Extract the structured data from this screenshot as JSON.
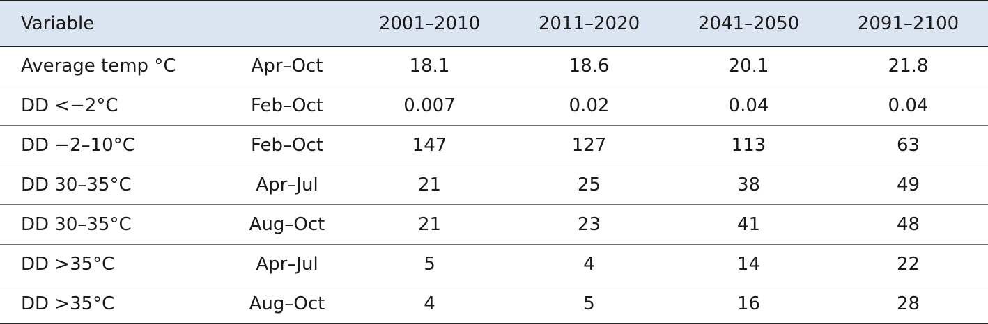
{
  "table": {
    "headers": [
      "Variable",
      "",
      "2001–2010",
      "2011–2020",
      "2041–2050",
      "2091–2100"
    ],
    "rows": [
      {
        "variable": "Average temp °C",
        "period": "Apr–Oct",
        "values": [
          "18.1",
          "18.6",
          "20.1",
          "21.8"
        ]
      },
      {
        "variable": "DD <−2°C",
        "period": "Feb–Oct",
        "values": [
          "0.007",
          "0.02",
          "0.04",
          "0.04"
        ]
      },
      {
        "variable": "DD −2–10°C",
        "period": "Feb–Oct",
        "values": [
          "147",
          "127",
          "113",
          "63"
        ]
      },
      {
        "variable": "DD 30–35°C",
        "period": "Apr–Jul",
        "values": [
          "21",
          "25",
          "38",
          "49"
        ]
      },
      {
        "variable": "DD 30–35°C",
        "period": "Aug–Oct",
        "values": [
          "21",
          "23",
          "41",
          "48"
        ]
      },
      {
        "variable": "DD >35°C",
        "period": "Apr–Jul",
        "values": [
          "5",
          "4",
          "14",
          "22"
        ]
      },
      {
        "variable": "DD >35°C",
        "period": "Aug–Oct",
        "values": [
          "4",
          "5",
          "16",
          "28"
        ]
      }
    ]
  },
  "colors": {
    "header_background": "#dbe4f1",
    "rule": "#222222",
    "row_divider": "#6e6e6e"
  }
}
